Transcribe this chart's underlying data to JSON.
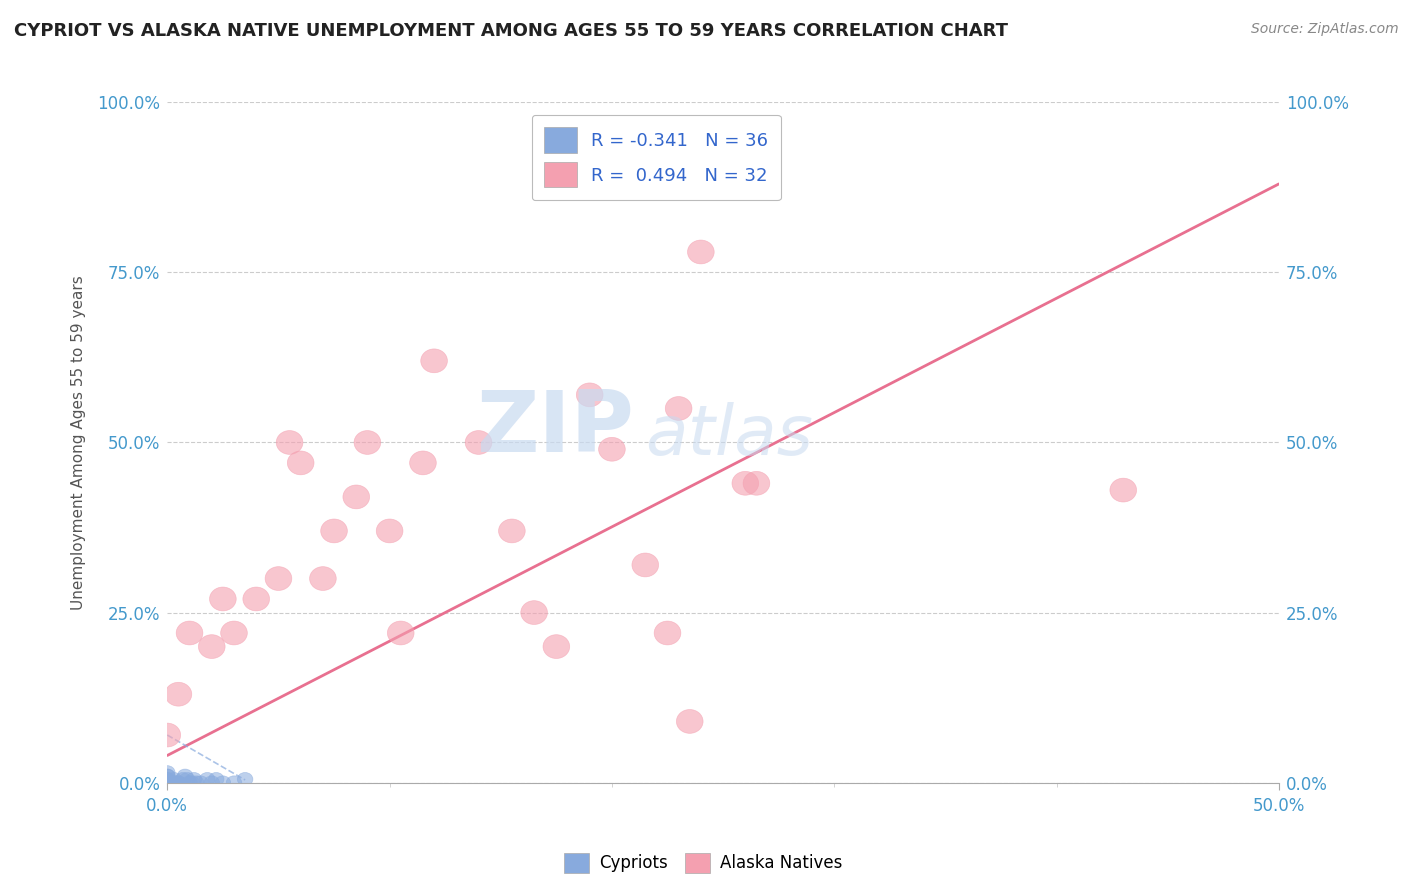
{
  "title": "CYPRIOT VS ALASKA NATIVE UNEMPLOYMENT AMONG AGES 55 TO 59 YEARS CORRELATION CHART",
  "source": "Source: ZipAtlas.com",
  "ylabel": "Unemployment Among Ages 55 to 59 years",
  "xlim": [
    0,
    0.5
  ],
  "ylim": [
    0,
    1.0
  ],
  "xtick_positions": [
    0.0,
    0.5
  ],
  "xtick_labels": [
    "0.0%",
    "50.0%"
  ],
  "ytick_positions": [
    0.0,
    0.25,
    0.5,
    0.75,
    1.0
  ],
  "ytick_labels": [
    "0.0%",
    "25.0%",
    "50.0%",
    "75.0%",
    "100.0%"
  ],
  "cypriot_color": "#88aadd",
  "alaska_color": "#f4a0b0",
  "cypriot_label": "Cypriots",
  "alaska_label": "Alaska Natives",
  "cypriot_R": -0.341,
  "cypriot_N": 36,
  "alaska_R": 0.494,
  "alaska_N": 32,
  "legend_label_color": "#333333",
  "legend_value_color": "#3366cc",
  "watermark_zip": "ZIP",
  "watermark_atlas": "atlas",
  "background_color": "#ffffff",
  "grid_color": "#cccccc",
  "tick_label_color": "#4499cc",
  "cypriot_x": [
    0.0,
    0.0,
    0.0,
    0.0,
    0.0,
    0.0,
    0.0,
    0.0,
    0.0,
    0.0,
    0.0,
    0.0,
    0.0,
    0.0,
    0.0,
    0.0,
    0.002,
    0.003,
    0.003,
    0.004,
    0.005,
    0.005,
    0.007,
    0.008,
    0.009,
    0.01,
    0.011,
    0.012,
    0.013,
    0.015,
    0.018,
    0.02,
    0.022,
    0.025,
    0.03,
    0.035
  ],
  "cypriot_y": [
    0.0,
    0.0,
    0.0,
    0.0,
    0.0,
    0.0,
    0.0,
    0.0,
    0.0,
    0.0,
    0.0,
    0.005,
    0.005,
    0.01,
    0.01,
    0.015,
    0.0,
    0.0,
    0.005,
    0.0,
    0.0,
    0.0,
    0.005,
    0.01,
    0.005,
    0.0,
    0.0,
    0.005,
    0.0,
    0.0,
    0.005,
    0.0,
    0.005,
    0.0,
    0.0,
    0.005
  ],
  "alaska_x": [
    0.0,
    0.005,
    0.01,
    0.02,
    0.025,
    0.03,
    0.04,
    0.05,
    0.055,
    0.06,
    0.07,
    0.075,
    0.085,
    0.09,
    0.1,
    0.105,
    0.115,
    0.12,
    0.14,
    0.155,
    0.165,
    0.175,
    0.19,
    0.2,
    0.215,
    0.225,
    0.23,
    0.235,
    0.24,
    0.26,
    0.265,
    0.43
  ],
  "alaska_y": [
    0.07,
    0.13,
    0.22,
    0.2,
    0.27,
    0.22,
    0.27,
    0.3,
    0.5,
    0.47,
    0.3,
    0.37,
    0.42,
    0.5,
    0.37,
    0.22,
    0.47,
    0.62,
    0.5,
    0.37,
    0.25,
    0.2,
    0.57,
    0.49,
    0.32,
    0.22,
    0.55,
    0.09,
    0.78,
    0.44,
    0.44,
    0.43
  ],
  "alaska_trend_x": [
    0.0,
    0.5
  ],
  "alaska_trend_y": [
    0.04,
    0.88
  ],
  "cypriot_trend_x": [
    0.0,
    0.035
  ],
  "cypriot_trend_y": [
    0.07,
    0.004
  ]
}
